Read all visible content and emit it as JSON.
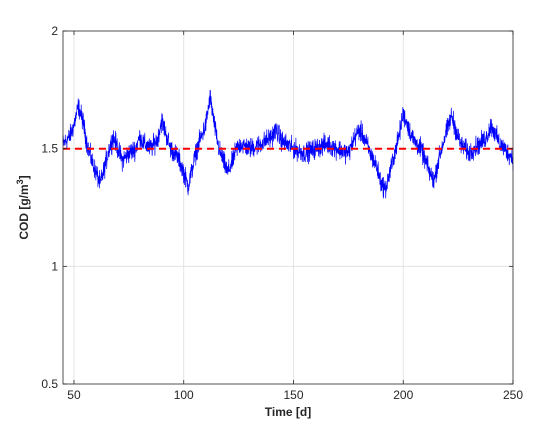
{
  "chart_data": {
    "type": "line",
    "title": "",
    "xlabel": "Time [d]",
    "ylabel": "COD [g/m",
    "ylabel_superscript": "3",
    "ylabel_suffix": "]",
    "xlim": [
      45,
      250
    ],
    "ylim": [
      0.5,
      2
    ],
    "xticks": [
      {
        "value": 50,
        "label": "50"
      },
      {
        "value": 100,
        "label": "100"
      },
      {
        "value": 150,
        "label": "150"
      },
      {
        "value": 200,
        "label": "200"
      },
      {
        "value": 250,
        "label": "250"
      }
    ],
    "yticks": [
      {
        "value": 0.5,
        "label": "0.5"
      },
      {
        "value": 1,
        "label": "1"
      },
      {
        "value": 1.5,
        "label": "1.5"
      },
      {
        "value": 2,
        "label": "2"
      }
    ],
    "grid": true,
    "series": [
      {
        "color": "#0000ff",
        "style": "solid",
        "noise_amplitude": 0.03,
        "x": [
          45,
          48,
          50,
          52,
          54,
          56,
          58,
          60,
          62,
          64,
          66,
          68,
          70,
          72,
          75,
          78,
          80,
          82,
          85,
          88,
          90,
          92,
          94,
          96,
          98,
          100,
          102,
          104,
          106,
          108,
          110,
          112,
          114,
          116,
          118,
          120,
          122,
          124,
          126,
          130,
          135,
          140,
          142,
          145,
          150,
          155,
          160,
          165,
          170,
          175,
          178,
          180,
          182,
          185,
          188,
          190,
          192,
          194,
          196,
          198,
          200,
          202,
          204,
          206,
          208,
          210,
          212,
          214,
          216,
          218,
          220,
          222,
          224,
          226,
          228,
          230,
          232,
          235,
          238,
          240,
          242,
          244,
          246,
          248,
          250
        ],
        "y": [
          1.52,
          1.55,
          1.6,
          1.68,
          1.62,
          1.52,
          1.45,
          1.4,
          1.35,
          1.42,
          1.5,
          1.55,
          1.5,
          1.45,
          1.48,
          1.5,
          1.55,
          1.52,
          1.5,
          1.54,
          1.62,
          1.56,
          1.5,
          1.48,
          1.45,
          1.4,
          1.34,
          1.42,
          1.5,
          1.55,
          1.6,
          1.72,
          1.6,
          1.5,
          1.45,
          1.4,
          1.44,
          1.5,
          1.52,
          1.5,
          1.52,
          1.55,
          1.58,
          1.53,
          1.5,
          1.48,
          1.5,
          1.52,
          1.5,
          1.48,
          1.55,
          1.58,
          1.55,
          1.48,
          1.42,
          1.35,
          1.33,
          1.4,
          1.48,
          1.55,
          1.65,
          1.6,
          1.55,
          1.52,
          1.5,
          1.45,
          1.4,
          1.36,
          1.45,
          1.52,
          1.58,
          1.64,
          1.58,
          1.52,
          1.5,
          1.48,
          1.5,
          1.52,
          1.55,
          1.6,
          1.56,
          1.52,
          1.5,
          1.48,
          1.46
        ]
      },
      {
        "color": "#ff0000",
        "style": "dashed",
        "x": [
          45,
          250
        ],
        "y": [
          1.5,
          1.5
        ]
      }
    ]
  }
}
